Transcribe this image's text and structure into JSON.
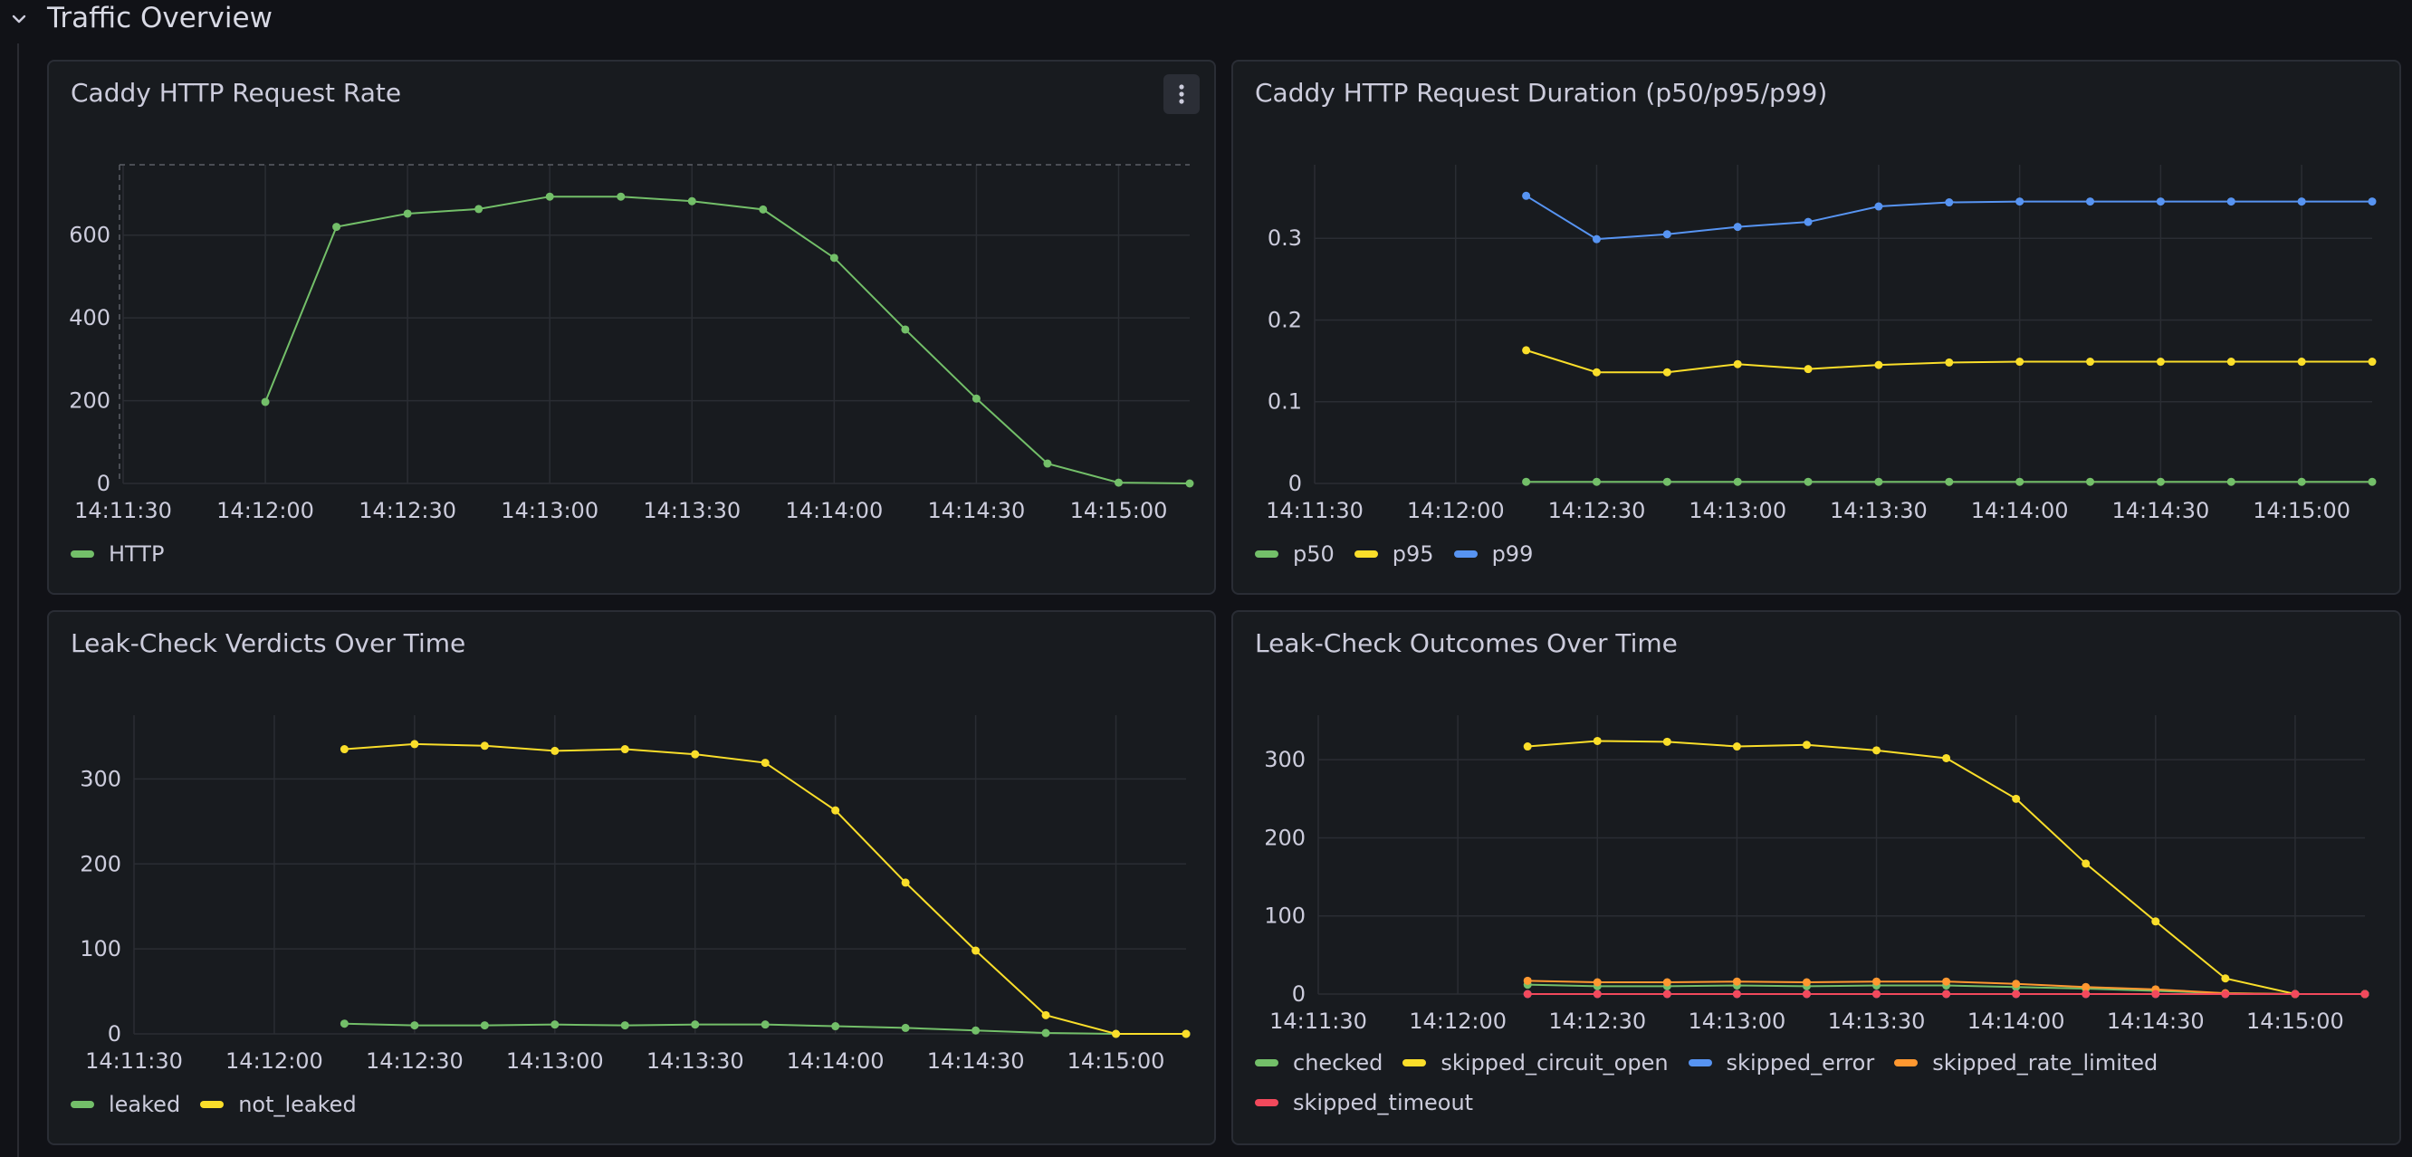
{
  "row": {
    "title": "Traffic Overview"
  },
  "colors": {
    "green": "#73bf69",
    "yellow": "#fade2a",
    "blue": "#5794f2",
    "orange": "#ff9830",
    "red": "#f2495c",
    "grid": "#2a2d33",
    "tick_text": "#ccccdc"
  },
  "panels": [
    {
      "title": "Caddy HTTP Request Rate",
      "has_menu": true,
      "chart_data": {
        "type": "line",
        "title": "Caddy HTTP Request Rate",
        "x_ticks": [
          "14:11:30",
          "14:12:00",
          "14:12:30",
          "14:13:00",
          "14:13:30",
          "14:14:00",
          "14:14:30",
          "14:15:00"
        ],
        "x": [
          "14:12:00",
          "14:12:15",
          "14:12:30",
          "14:12:45",
          "14:13:00",
          "14:13:15",
          "14:13:30",
          "14:13:45",
          "14:14:00",
          "14:14:15",
          "14:14:30",
          "14:14:45",
          "14:15:00",
          "14:15:15"
        ],
        "y_ticks": [
          0,
          200,
          400,
          600
        ],
        "ylim": [
          0,
          770
        ],
        "threshold_line": 770,
        "series": [
          {
            "name": "HTTP",
            "color": "#73bf69",
            "values": [
              197,
              620,
              652,
              663,
              693,
              693,
              682,
              662,
              545,
              372,
              205,
              48,
              2,
              0
            ]
          }
        ]
      }
    },
    {
      "title": "Caddy HTTP Request Duration (p50/p95/p99)",
      "has_menu": false,
      "chart_data": {
        "type": "line",
        "title": "Caddy HTTP Request Duration (p50/p95/p99)",
        "x_ticks": [
          "14:11:30",
          "14:12:00",
          "14:12:30",
          "14:13:00",
          "14:13:30",
          "14:14:00",
          "14:14:30",
          "14:15:00"
        ],
        "x": [
          "14:12:15",
          "14:12:30",
          "14:12:45",
          "14:13:00",
          "14:13:15",
          "14:13:30",
          "14:13:45",
          "14:14:00",
          "14:14:15",
          "14:14:30",
          "14:14:45",
          "14:15:00",
          "14:15:15"
        ],
        "y_ticks": [
          0,
          0.1,
          0.2,
          0.3
        ],
        "y_tick_labels": [
          "0",
          "0.1",
          "0.2",
          "0.3"
        ],
        "ylim": [
          0,
          0.39
        ],
        "series": [
          {
            "name": "p50",
            "color": "#73bf69",
            "values": [
              0.002,
              0.002,
              0.002,
              0.002,
              0.002,
              0.002,
              0.002,
              0.002,
              0.002,
              0.002,
              0.002,
              0.002,
              0.002
            ]
          },
          {
            "name": "p95",
            "color": "#fade2a",
            "values": [
              0.163,
              0.136,
              0.136,
              0.146,
              0.14,
              0.145,
              0.148,
              0.149,
              0.149,
              0.149,
              0.149,
              0.149,
              0.149
            ]
          },
          {
            "name": "p99",
            "color": "#5794f2",
            "values": [
              0.352,
              0.299,
              0.305,
              0.314,
              0.32,
              0.339,
              0.344,
              0.345,
              0.345,
              0.345,
              0.345,
              0.345,
              0.345
            ]
          }
        ]
      }
    },
    {
      "title": "Leak-Check Verdicts Over Time",
      "has_menu": false,
      "chart_data": {
        "type": "line",
        "title": "Leak-Check Verdicts Over Time",
        "x_ticks": [
          "14:11:30",
          "14:12:00",
          "14:12:30",
          "14:13:00",
          "14:13:30",
          "14:14:00",
          "14:14:30",
          "14:15:00"
        ],
        "x": [
          "14:12:15",
          "14:12:30",
          "14:12:45",
          "14:13:00",
          "14:13:15",
          "14:13:30",
          "14:13:45",
          "14:14:00",
          "14:14:15",
          "14:14:30",
          "14:14:45",
          "14:15:00",
          "14:15:15"
        ],
        "y_ticks": [
          0,
          100,
          200,
          300
        ],
        "ylim": [
          0,
          375
        ],
        "series": [
          {
            "name": "leaked",
            "color": "#73bf69",
            "values": [
              12,
              10,
              10,
              11,
              10,
              11,
              11,
              9,
              7,
              4,
              1,
              0,
              0
            ]
          },
          {
            "name": "not_leaked",
            "color": "#fade2a",
            "values": [
              335,
              341,
              339,
              333,
              335,
              329,
              319,
              263,
              178,
              98,
              22,
              0,
              0
            ]
          }
        ]
      }
    },
    {
      "title": "Leak-Check Outcomes Over Time",
      "has_menu": false,
      "chart_data": {
        "type": "line",
        "title": "Leak-Check Outcomes Over Time",
        "x_ticks": [
          "14:11:30",
          "14:12:00",
          "14:12:30",
          "14:13:00",
          "14:13:30",
          "14:14:00",
          "14:14:30",
          "14:15:00"
        ],
        "x": [
          "14:12:15",
          "14:12:30",
          "14:12:45",
          "14:13:00",
          "14:13:15",
          "14:13:30",
          "14:13:45",
          "14:14:00",
          "14:14:15",
          "14:14:30",
          "14:14:45",
          "14:15:00",
          "14:15:15"
        ],
        "y_ticks": [
          0,
          100,
          200,
          300
        ],
        "ylim": [
          0,
          357
        ],
        "series": [
          {
            "name": "checked",
            "color": "#73bf69",
            "values": [
              12,
              10,
              10,
              11,
              10,
              11,
              11,
              9,
              7,
              4,
              1,
              0,
              0
            ]
          },
          {
            "name": "skipped_circuit_open",
            "color": "#fade2a",
            "values": [
              317,
              324,
              323,
              317,
              319,
              312,
              302,
              250,
              167,
              93,
              20,
              0,
              0
            ]
          },
          {
            "name": "skipped_error",
            "color": "#5794f2",
            "values": [
              0,
              0,
              0,
              0,
              0,
              0,
              0,
              0,
              0,
              0,
              0,
              0,
              0
            ]
          },
          {
            "name": "skipped_rate_limited",
            "color": "#ff9830",
            "values": [
              17,
              15,
              15,
              16,
              15,
              16,
              16,
              13,
              9,
              6,
              1,
              0,
              0
            ]
          },
          {
            "name": "skipped_timeout",
            "color": "#f2495c",
            "values": [
              0,
              0,
              0,
              0,
              0,
              0,
              0,
              0,
              0,
              0,
              0,
              0,
              0
            ]
          }
        ]
      }
    }
  ]
}
